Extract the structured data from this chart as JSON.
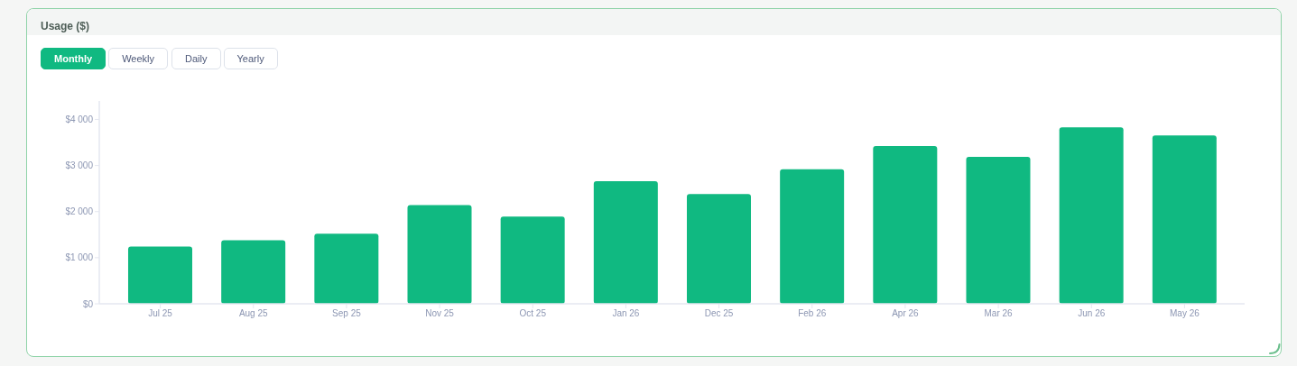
{
  "chart_data": {
    "type": "bar",
    "title": "Usage ($)",
    "categories": [
      "Jul 25",
      "Aug 25",
      "Sep 25",
      "Nov 25",
      "Oct 25",
      "Jan 26",
      "Dec 25",
      "Feb 26",
      "Apr 26",
      "Mar 26",
      "Jun 26",
      "May 26"
    ],
    "values": [
      1240,
      1380,
      1520,
      2140,
      1890,
      2660,
      2380,
      2920,
      3420,
      3190,
      3830,
      3650
    ],
    "color": "#10b981",
    "ylim": [
      0,
      4400
    ],
    "yticks": [
      {
        "value": 0,
        "label": "$0"
      },
      {
        "value": 1000,
        "label": "$1 000"
      },
      {
        "value": 2000,
        "label": "$2 000"
      },
      {
        "value": 3000,
        "label": "$3 000"
      },
      {
        "value": 4000,
        "label": "$4 000"
      }
    ],
    "annotations": [
      "Monthly",
      "Weekly",
      "Daily",
      "Yearly"
    ]
  }
}
